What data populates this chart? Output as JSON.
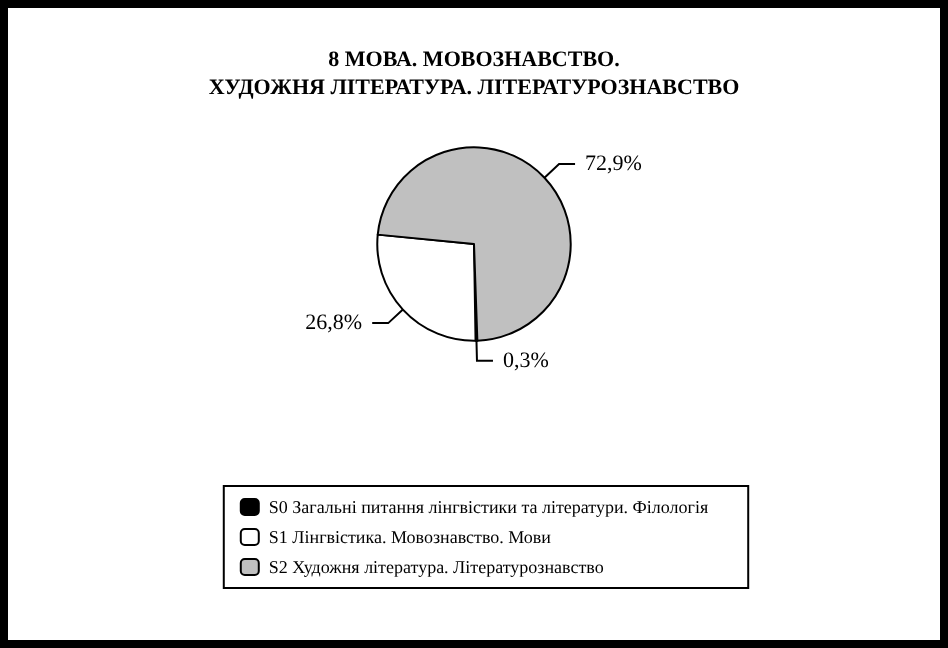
{
  "chart_data": {
    "type": "pie",
    "title": "8 МОВА. МОВОЗНАВСТВО.\nХУДОЖНЯ ЛІТЕРАТУРА. ЛІТЕРАТУРОЗНАВСТВО",
    "categories": [
      "S0 Загальні питання лінгвістики та літератури. Філологія",
      "S1 Лінгвістика. Мовознавство. Мови",
      "S2 Художня література. Літературознавство"
    ],
    "values": [
      0.3,
      26.8,
      72.9
    ],
    "colors": [
      "#000000",
      "#ffffff",
      "#c0c0c0"
    ],
    "value_labels": [
      "0,3%",
      "26,8%",
      "72,9%"
    ],
    "legend": "bottom"
  }
}
